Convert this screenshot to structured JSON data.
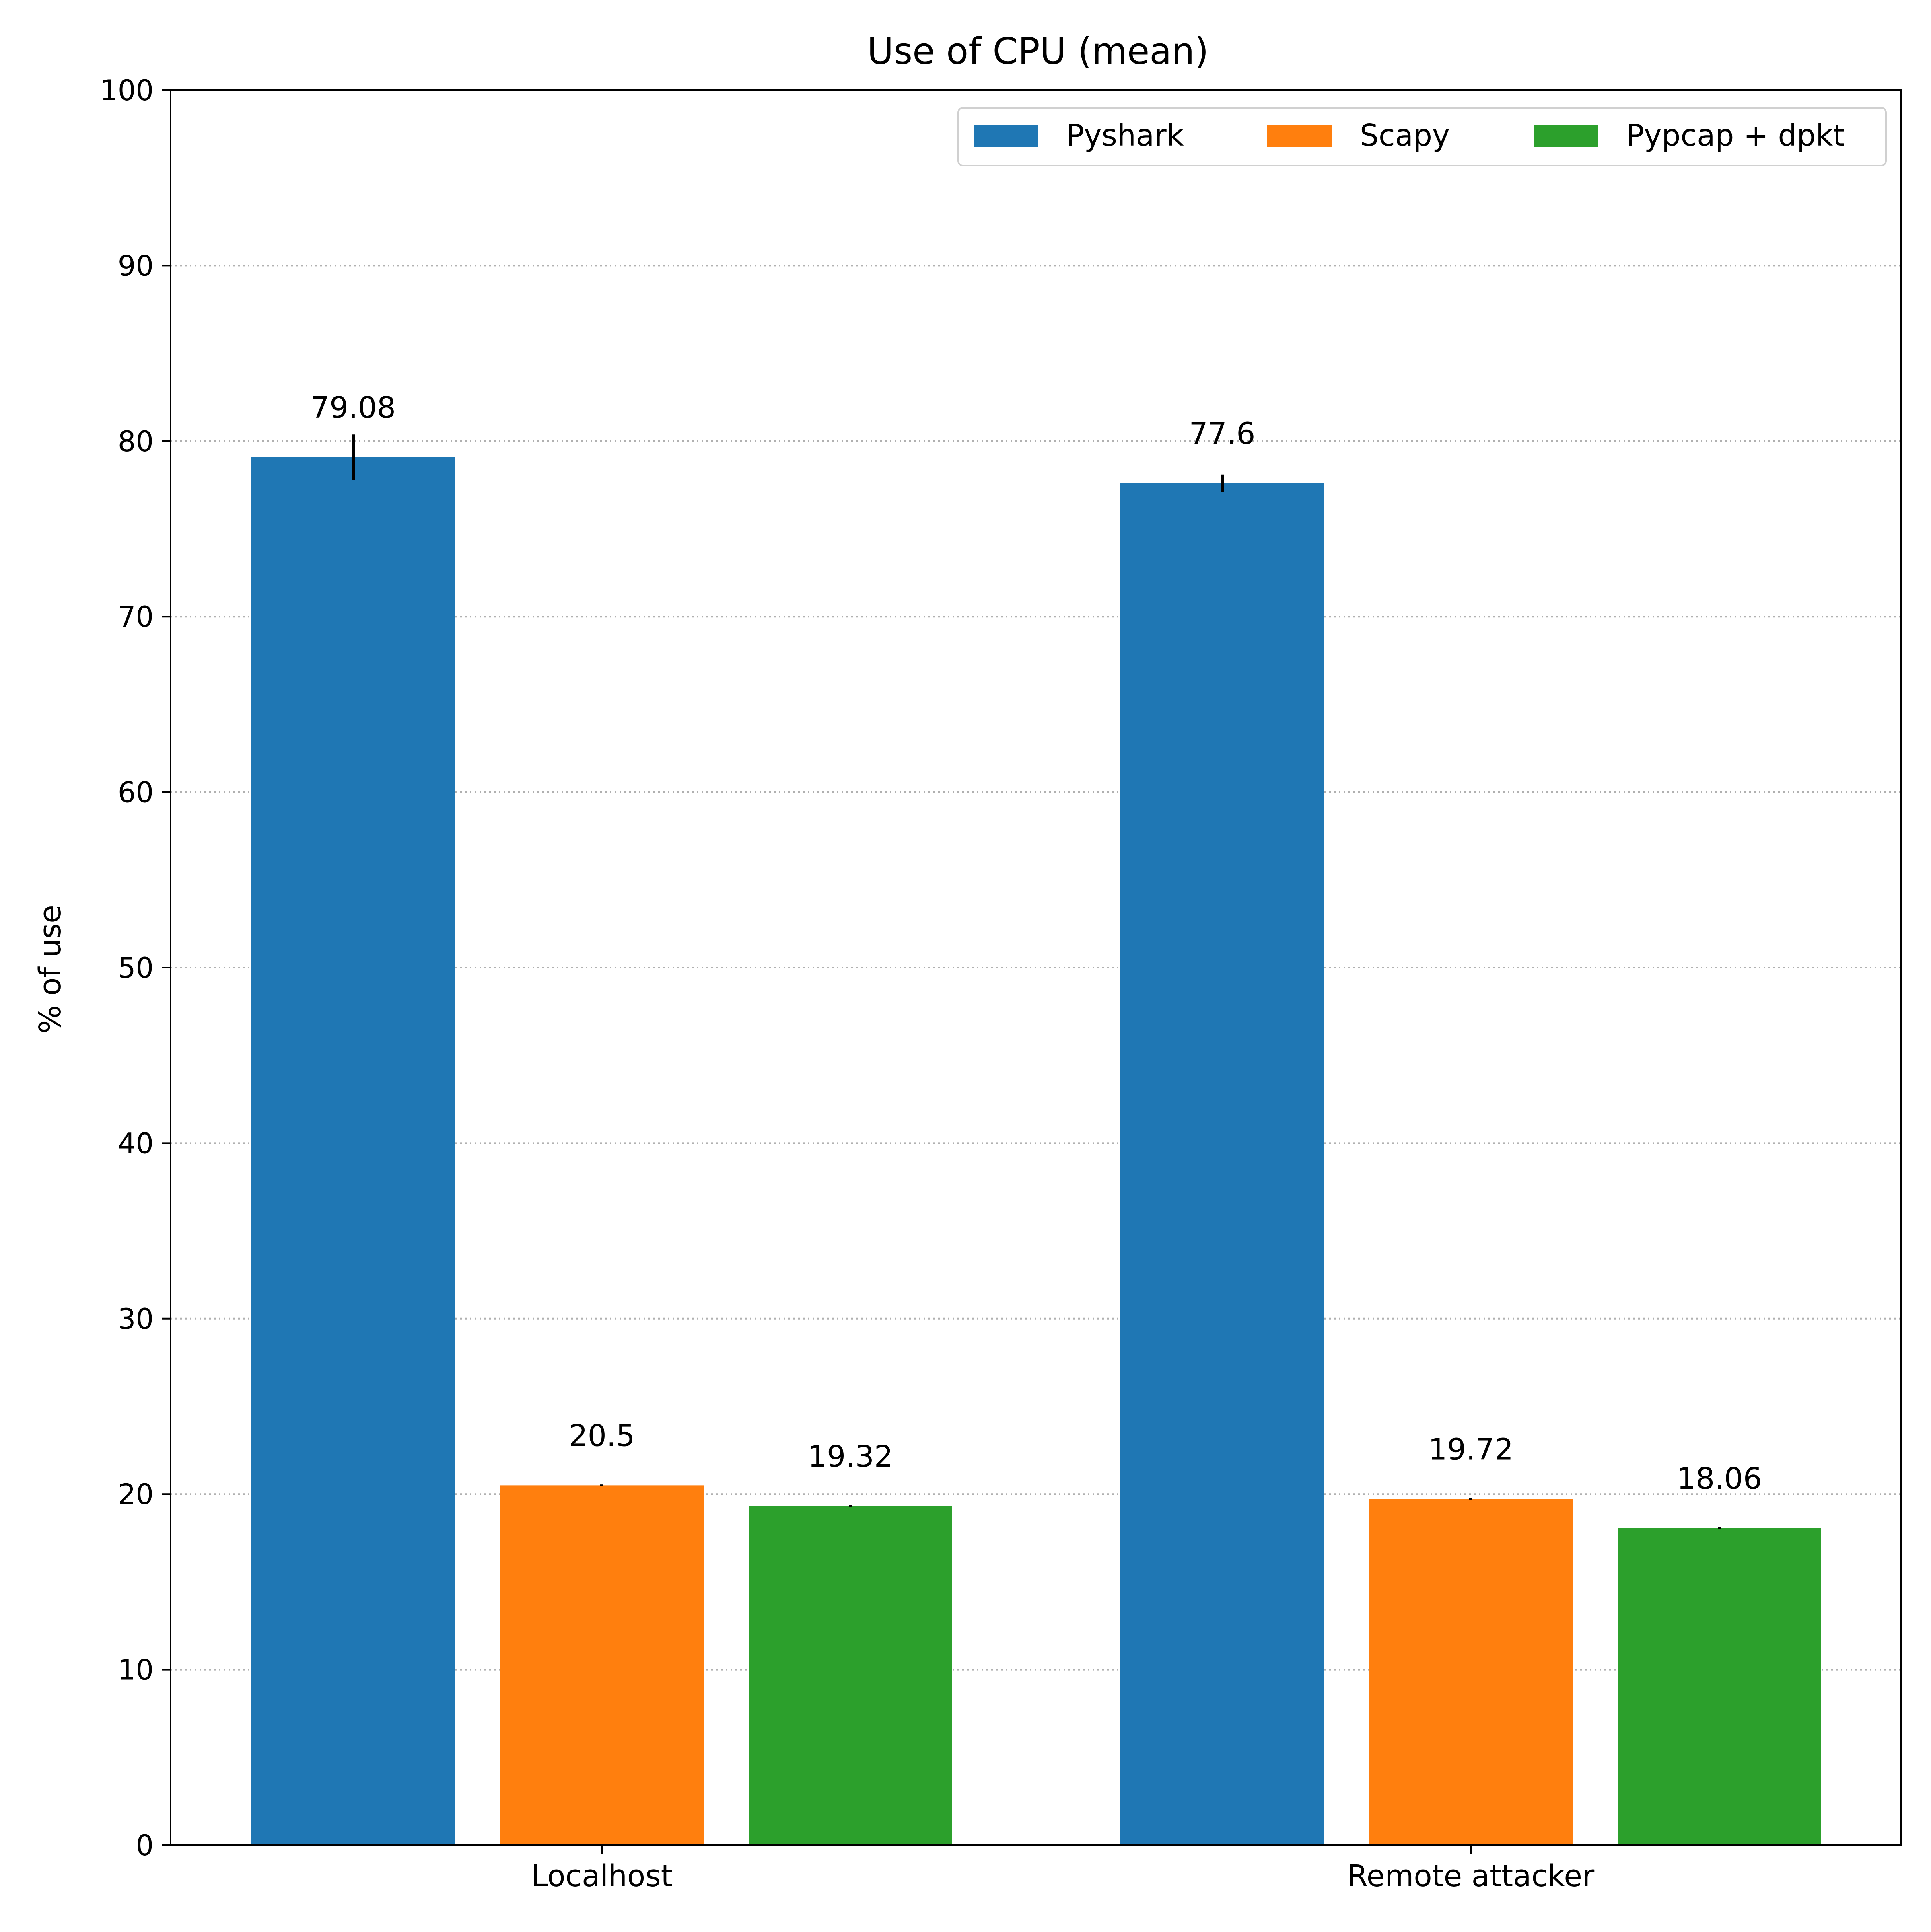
{
  "chart_data": {
    "type": "bar",
    "title": "Use of CPU (mean)",
    "xlabel": "",
    "ylabel": "% of use",
    "categories": [
      "Localhost",
      "Remote attacker"
    ],
    "ylim": [
      0,
      100
    ],
    "yticks": [
      0,
      10,
      20,
      30,
      40,
      50,
      60,
      70,
      80,
      90,
      100
    ],
    "grid": "horizontal-dotted",
    "legend_placement": "top-right",
    "series": [
      {
        "name": "Pyshark",
        "color": "#1f77b4",
        "values": [
          79.08,
          77.6
        ],
        "errors": [
          1.3,
          0.5
        ],
        "labels": [
          "79.08",
          "77.6"
        ]
      },
      {
        "name": "Scapy",
        "color": "#ff7f0e",
        "values": [
          20.5,
          19.72
        ],
        "errors": [
          0.05,
          0.05
        ],
        "labels": [
          "20.5",
          "19.72"
        ]
      },
      {
        "name": "Pypcap + dpkt",
        "color": "#2ca02c",
        "values": [
          19.32,
          18.06
        ],
        "errors": [
          0.05,
          0.05
        ],
        "labels": [
          "19.32",
          "18.06"
        ]
      }
    ]
  }
}
